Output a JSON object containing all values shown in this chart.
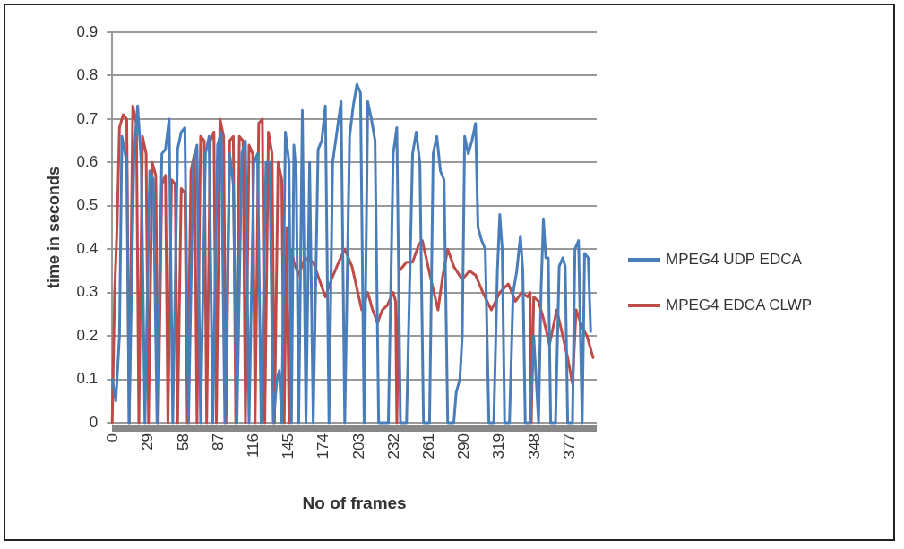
{
  "chart_data": {
    "type": "line",
    "xlabel": "No of frames",
    "ylabel": "time in seconds",
    "xlim": [
      0,
      400
    ],
    "xticks": [
      0,
      29,
      58,
      87,
      116,
      145,
      174,
      203,
      232,
      261,
      290,
      319,
      348,
      377
    ],
    "ylim": [
      0,
      0.9
    ],
    "yticks": [
      0,
      0.1,
      0.2,
      0.3,
      0.4,
      0.5,
      0.6,
      0.7,
      0.8,
      0.9
    ],
    "grid": "y",
    "legend": "right",
    "marker": "none",
    "line_style": "solid",
    "series": [
      {
        "name": "MPEG4 UDP EDCA",
        "color": "#4a7ebb",
        "x": [
          0,
          3,
          6,
          8,
          12,
          14,
          18,
          21,
          24,
          27,
          31,
          34,
          37,
          41,
          44,
          47,
          50,
          54,
          57,
          60,
          63,
          67,
          70,
          73,
          77,
          80,
          83,
          87,
          90,
          93,
          97,
          100,
          103,
          107,
          110,
          113,
          117,
          120,
          123,
          127,
          130,
          133,
          136,
          138,
          140,
          143,
          146,
          148,
          150,
          152,
          154,
          157,
          160,
          163,
          166,
          170,
          173,
          176,
          179,
          182,
          186,
          189,
          192,
          196,
          199,
          202,
          205,
          208,
          211,
          214,
          217,
          220,
          224,
          228,
          232,
          235,
          238,
          243,
          248,
          251,
          254,
          257,
          262,
          265,
          268,
          271,
          274,
          277,
          282,
          284,
          287,
          289,
          291,
          294,
          297,
          300,
          302,
          305,
          308,
          311,
          315,
          318,
          320,
          322,
          324,
          328,
          331,
          334,
          337,
          339,
          341,
          345,
          348,
          352,
          354,
          356,
          358,
          360,
          362,
          366,
          369,
          372,
          374,
          376,
          380,
          382,
          385,
          388,
          390,
          393,
          395
        ],
        "values": [
          0.1,
          0.05,
          0.2,
          0.66,
          0.6,
          0,
          0.62,
          0.73,
          0.6,
          0,
          0.58,
          0.56,
          0,
          0.62,
          0.63,
          0.7,
          0,
          0.63,
          0.67,
          0.68,
          0,
          0.6,
          0.64,
          0,
          0.62,
          0.66,
          0,
          0.64,
          0.67,
          0,
          0.62,
          0.55,
          0,
          0.62,
          0.65,
          0,
          0.6,
          0.62,
          0,
          0.6,
          0.6,
          0,
          0.1,
          0.12,
          0,
          0.67,
          0.6,
          0,
          0.64,
          0.57,
          0,
          0.72,
          0,
          0.6,
          0,
          0.63,
          0.65,
          0.73,
          0,
          0.6,
          0.68,
          0.74,
          0,
          0.66,
          0.73,
          0.78,
          0.76,
          0,
          0.74,
          0.7,
          0.65,
          0,
          0,
          0,
          0.62,
          0.68,
          0,
          0,
          0.62,
          0.67,
          0.6,
          0,
          0,
          0.62,
          0.66,
          0.58,
          0.56,
          0,
          0,
          0.07,
          0.1,
          0.2,
          0.66,
          0.62,
          0.65,
          0.69,
          0.45,
          0.42,
          0.4,
          0,
          0,
          0.35,
          0.48,
          0.4,
          0,
          0,
          0.3,
          0.35,
          0.43,
          0.35,
          0,
          0,
          0.2,
          0,
          0.3,
          0.47,
          0.38,
          0.38,
          0,
          0,
          0.36,
          0.38,
          0.36,
          0,
          0,
          0.4,
          0.42,
          0,
          0.39,
          0.38,
          0.21
        ]
      },
      {
        "name": "MPEG4 EDCA CLWP",
        "color": "#be4b48",
        "x": [
          0,
          2,
          4,
          6,
          9,
          12,
          14,
          17,
          20,
          22,
          25,
          28,
          30,
          33,
          36,
          38,
          41,
          44,
          46,
          49,
          52,
          54,
          57,
          60,
          62,
          65,
          68,
          70,
          73,
          76,
          78,
          81,
          84,
          86,
          89,
          92,
          94,
          97,
          100,
          102,
          105,
          108,
          110,
          113,
          116,
          118,
          121,
          124,
          126,
          129,
          132,
          134,
          137,
          140,
          142,
          144,
          146,
          148,
          150,
          154,
          159,
          166,
          171,
          176,
          181,
          187,
          192,
          198,
          202,
          206,
          211,
          215,
          219,
          223,
          227,
          232,
          234,
          235,
          237,
          243,
          248,
          253,
          256,
          260,
          264,
          269,
          273,
          277,
          282,
          289,
          295,
          300,
          306,
          313,
          320,
          327,
          333,
          338,
          343,
          345,
          346,
          348,
          352,
          356,
          361,
          367,
          372,
          376,
          380,
          383,
          388,
          392,
          397
        ],
        "values": [
          0,
          0.3,
          0.45,
          0.68,
          0.71,
          0.7,
          0,
          0.73,
          0.69,
          0,
          0.66,
          0.62,
          0,
          0.6,
          0.57,
          0,
          0.55,
          0.57,
          0,
          0.56,
          0.55,
          0,
          0.54,
          0.53,
          0,
          0.58,
          0.62,
          0,
          0.66,
          0.65,
          0,
          0.65,
          0.67,
          0,
          0.7,
          0.66,
          0,
          0.65,
          0.66,
          0,
          0.66,
          0.65,
          0,
          0.64,
          0.62,
          0,
          0.69,
          0.7,
          0,
          0.67,
          0.62,
          0,
          0.6,
          0.56,
          0,
          0.45,
          0,
          0.4,
          0.37,
          0.34,
          0.38,
          0.37,
          0.33,
          0.29,
          0.33,
          0.37,
          0.4,
          0.36,
          0.31,
          0.26,
          0.3,
          0.26,
          0.23,
          0.26,
          0.27,
          0.3,
          0.28,
          0,
          0.35,
          0.37,
          0.37,
          0.41,
          0.42,
          0.37,
          0.32,
          0.26,
          0.34,
          0.4,
          0.36,
          0.33,
          0.35,
          0.34,
          0.3,
          0.26,
          0.3,
          0.32,
          0.28,
          0.3,
          0.29,
          0.3,
          0,
          0.29,
          0.28,
          0.24,
          0.18,
          0.26,
          0.2,
          0.15,
          0.09,
          0.26,
          0.22,
          0.2,
          0.15
        ]
      }
    ]
  }
}
